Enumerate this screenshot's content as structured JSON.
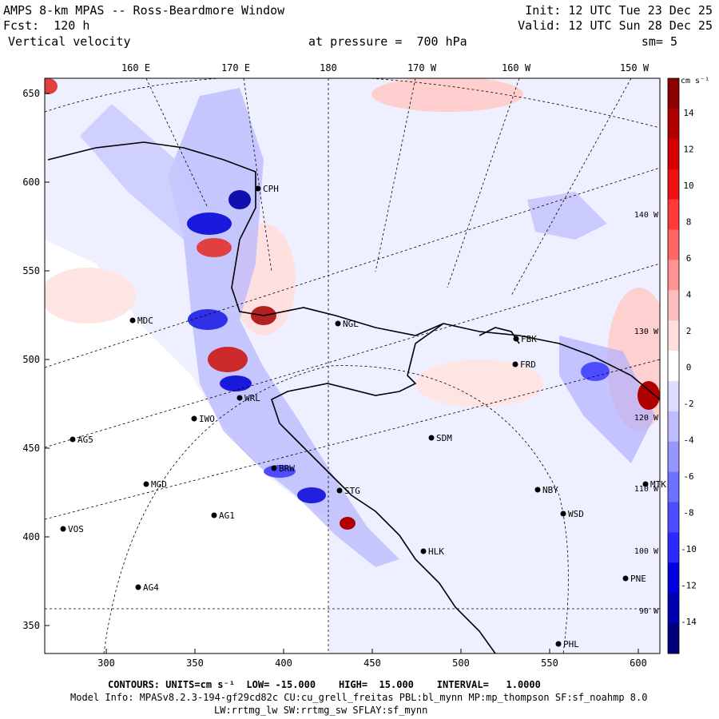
{
  "header": {
    "title": "AMPS 8-km MPAS -- Ross-Beardmore Window",
    "forecast": "Fcst:  120 h",
    "variable": "Vertical velocity",
    "init": "Init: 12 UTC Tue 23 Dec 25",
    "valid": "Valid: 12 UTC Sun 28 Dec 25",
    "pressure": "at pressure =  700 hPa",
    "smoothing": "sm= 5"
  },
  "map": {
    "lon_labels": [
      "160 E",
      "170 E",
      "180",
      "170 W",
      "160 W",
      "150 W"
    ],
    "x_ticks": [
      "300",
      "350",
      "400",
      "450",
      "500",
      "550",
      "600"
    ],
    "y_ticks": [
      "650",
      "600",
      "550",
      "500",
      "450",
      "400",
      "350"
    ],
    "right_lon_labels": [
      "140 W",
      "130 W",
      "120 W",
      "110 W",
      "100 W",
      "90 W"
    ],
    "stations": [
      {
        "code": "CPH"
      },
      {
        "code": "NGL"
      },
      {
        "code": "MDC"
      },
      {
        "code": "FBK"
      },
      {
        "code": "FRD"
      },
      {
        "code": "WRL"
      },
      {
        "code": "IWO"
      },
      {
        "code": "AG5"
      },
      {
        "code": "SDM"
      },
      {
        "code": "MGD"
      },
      {
        "code": "NBY"
      },
      {
        "code": "MTK"
      },
      {
        "code": "AG1"
      },
      {
        "code": "STG"
      },
      {
        "code": "WSD"
      },
      {
        "code": "VOS"
      },
      {
        "code": "HLK"
      },
      {
        "code": "PNE"
      },
      {
        "code": "AG4"
      },
      {
        "code": "PHL"
      },
      {
        "code": "BRW"
      }
    ]
  },
  "colorbar": {
    "units": "cm s⁻¹",
    "labels": [
      "14",
      "12",
      "10",
      "8",
      "6",
      "4",
      "2",
      "0",
      "-2",
      "-4",
      "-6",
      "-8",
      "-10",
      "-12",
      "-14"
    ],
    "colors": [
      "#8b0000",
      "#b00000",
      "#d40000",
      "#ee1111",
      "#ff3a3a",
      "#ff6666",
      "#ff9393",
      "#ffbebe",
      "#ffdede",
      "#ffffff",
      "#dcdcff",
      "#bcbcff",
      "#9696ff",
      "#7070ff",
      "#4d4dff",
      "#2a2aff",
      "#0000e0",
      "#0000b0",
      "#00007d"
    ]
  },
  "footer": {
    "contours": "CONTOURS: UNITS=cm s⁻¹  LOW= -15.000    HIGH=  15.000    INTERVAL=   1.0000",
    "model_info": "Model Info: MPASv8.2.3-194-gf29cd82c CU:cu_grell_freitas PBL:bl_mynn MP:mp_thompson SF:sf_noahmp 8.0",
    "model_info2": "LW:rrtmg_lw SW:rrtmg_sw SFLAY:sf_mynn"
  }
}
